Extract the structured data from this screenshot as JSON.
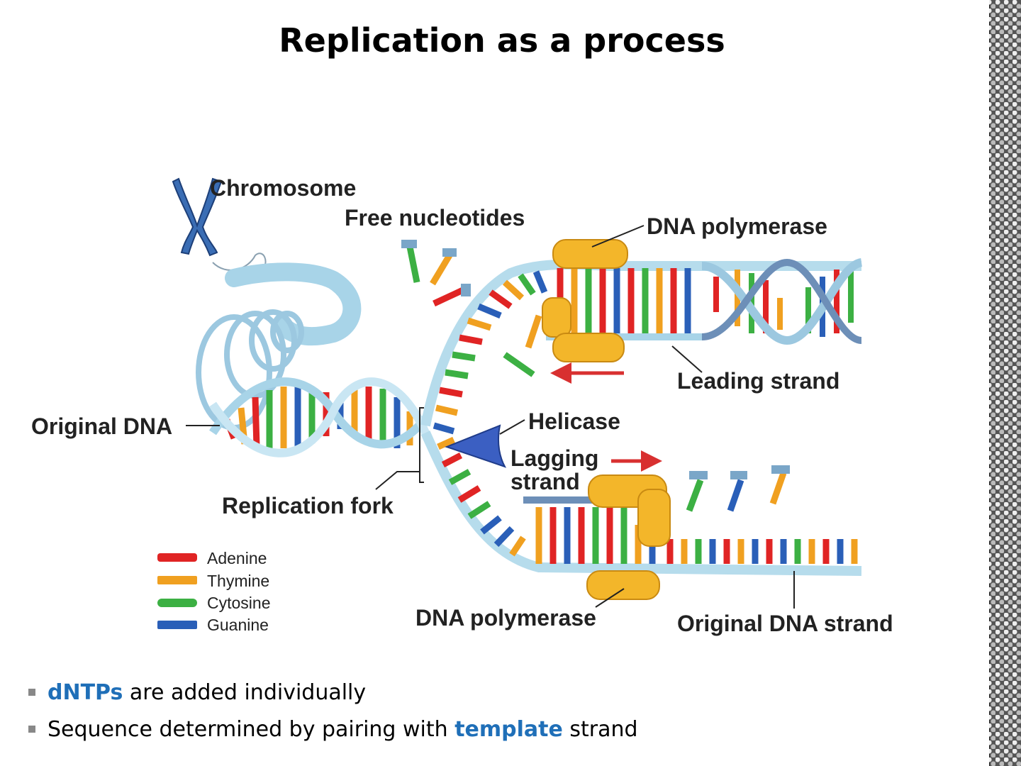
{
  "slide": {
    "title": "Replication as a process"
  },
  "diagram": {
    "labels": {
      "chromosome": "Chromosome",
      "free_nucleotides": "Free nucleotides",
      "dna_polymerase_top": "DNA polymerase",
      "leading_strand": "Leading strand",
      "original_dna": "Original DNA",
      "helicase": "Helicase",
      "lagging_strand_1": "Lagging",
      "lagging_strand_2": "strand",
      "replication_fork": "Replication fork",
      "dna_polymerase_bottom": "DNA polymerase",
      "original_dna_strand": "Original DNA strand"
    },
    "legend": [
      {
        "label": "Adenine",
        "color": "#e02424"
      },
      {
        "label": "Thymine",
        "color": "#f0a020"
      },
      {
        "label": "Cytosine",
        "color": "#3cb043"
      },
      {
        "label": "Guanine",
        "color": "#2a5fb8"
      }
    ],
    "colors": {
      "backbone": "#a8d4e8",
      "backbone_dark": "#5a7fa6",
      "polymerase": "#f3b62a",
      "helicase": "#3b5fc2",
      "arrow": "#d83030",
      "chromosome": "#3a6db4"
    }
  },
  "bullets": [
    {
      "highlight": "dNTPs",
      "text": " are added individually"
    },
    {
      "prefix": "Sequence determined by pairing with ",
      "highlight": "template",
      "suffix": " strand"
    }
  ]
}
